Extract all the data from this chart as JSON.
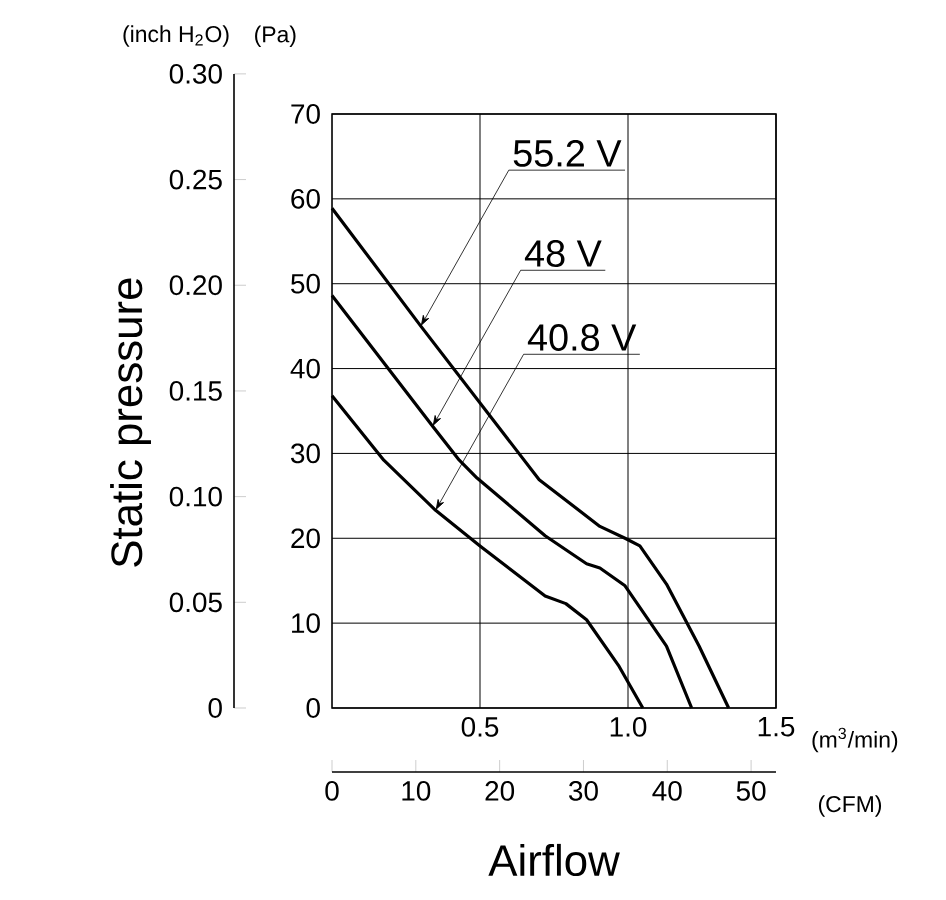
{
  "chart_data": {
    "type": "line",
    "ylabel": "Static pressure",
    "y2label": "(Pa)",
    "xlabel": "Airflow",
    "x2label": "(CFM)",
    "xlim": [
      0,
      1.5
    ],
    "xticks": [
      {
        "value": 0.5,
        "label": "0.5"
      },
      {
        "value": 1.0,
        "label": "1.0"
      },
      {
        "value": 1.5,
        "label": "1.5"
      }
    ],
    "y2lim": [
      0,
      70
    ],
    "y2ticks": [
      0,
      10,
      20,
      30,
      40,
      50,
      60,
      70
    ],
    "ylim": [
      0,
      0.3
    ],
    "yticks": [
      0,
      {
        "value": 0.05,
        "label": "0.05"
      },
      {
        "value": 0.1,
        "label": "0.10"
      },
      {
        "value": 0.15,
        "label": "0.15"
      },
      {
        "value": 0.2,
        "label": "0.20"
      },
      {
        "value": 0.25,
        "label": "0.25"
      },
      {
        "value": 0.3,
        "label": "0.30"
      }
    ],
    "x2lim": [
      0,
      52.97
    ],
    "x2ticks": [
      0,
      10,
      20,
      30,
      40,
      50
    ],
    "grid": true,
    "marker": "none",
    "line_style": "solid",
    "series": [
      {
        "axis": "y2",
        "name": "55.2 V",
        "color": "#000000",
        "x": [
          0,
          0.3,
          0.7,
          0.905,
          0.99,
          1.04,
          1.13,
          1.24,
          1.34
        ],
        "values": [
          58.9,
          45.0,
          26.9,
          21.4,
          20.0,
          19.1,
          14.6,
          7.3,
          0
        ]
      },
      {
        "axis": "y2",
        "name": "48 V",
        "color": "#000000",
        "x": [
          0,
          0.34,
          0.43,
          0.49,
          0.72,
          0.86,
          0.905,
          0.99,
          1.13,
          1.215
        ],
        "values": [
          48.6,
          33.2,
          29.2,
          27.1,
          20.3,
          17.0,
          16.5,
          14.4,
          7.3,
          0
        ]
      },
      {
        "axis": "y2",
        "name": "40.8 V",
        "color": "#000000",
        "x": [
          0,
          0.175,
          0.35,
          0.5,
          0.72,
          0.79,
          0.86,
          0.97,
          1.05
        ],
        "values": [
          36.8,
          29.2,
          23.3,
          19.1,
          13.2,
          12.3,
          10.4,
          4.9,
          0
        ]
      }
    ],
    "annotations": [
      "(inch H$_{2}$O)",
      "(m$^{3}$/min)"
    ]
  }
}
